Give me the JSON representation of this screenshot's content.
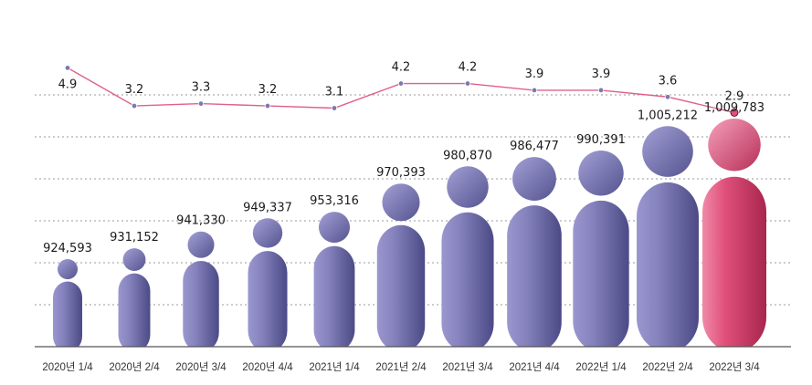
{
  "chart_data": {
    "type": "bar",
    "categories": [
      "2020년 1/4",
      "2020년 2/4",
      "2020년 3/4",
      "2020년 4/4",
      "2021년 1/4",
      "2021년 2/4",
      "2021년 3/4",
      "2021년 4/4",
      "2022년 1/4",
      "2022년 2/4",
      "2022년 3/4"
    ],
    "series": [
      {
        "values": [
          924593,
          931152,
          941330,
          949337,
          953316,
          970393,
          980870,
          986477,
          990391,
          1005212,
          1009783
        ]
      },
      {
        "type": "line",
        "values": [
          4.9,
          3.2,
          3.3,
          3.2,
          3.1,
          4.2,
          4.2,
          3.9,
          3.9,
          3.6,
          2.9
        ]
      }
    ],
    "value_labels": [
      "924,593",
      "931,152",
      "941,330",
      "949,337",
      "953,316",
      "970,393",
      "980,870",
      "986,477",
      "990,391",
      "1,005,212",
      "1,009,783"
    ],
    "rate_labels": [
      "4.9",
      "3.2",
      "3.3",
      "3.2",
      "3.1",
      "4.2",
      "4.2",
      "3.9",
      "3.9",
      "3.6",
      "2.9"
    ],
    "grid": true,
    "highlight_index": 10,
    "colors": {
      "figure": "#7b78b0",
      "figure_highlight": "#e0507a",
      "line": "#e0608a",
      "grid": "#9a9a9a",
      "axis": "#555555"
    }
  }
}
